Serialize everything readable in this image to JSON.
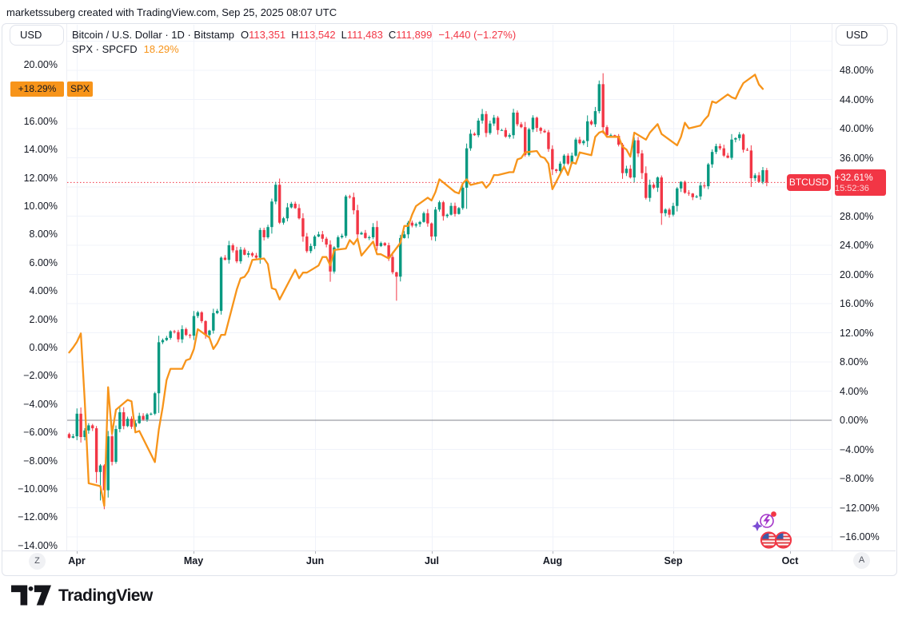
{
  "header": {
    "attribution": "marketssuberg created with TradingView.com, Sep 25, 2025 08:07 UTC"
  },
  "toolbar": {
    "currency_left": "USD",
    "currency_right": "USD",
    "zoom_out_label": "Z",
    "auto_label": "A"
  },
  "legend": {
    "row1": {
      "title": "Bitcoin / U.S. Dollar · 1D · Bitstamp",
      "ohlc": [
        {
          "k": "O",
          "v": "113,351"
        },
        {
          "k": "H",
          "v": "113,542"
        },
        {
          "k": "L",
          "v": "111,483"
        },
        {
          "k": "C",
          "v": "111,899"
        }
      ],
      "change": "−1,440 (−1.27%)"
    },
    "row2": {
      "title": "SPX · SPCFD",
      "value": "18.29%"
    }
  },
  "price_labels": {
    "spx_value": "+18.29%",
    "spx_name": "SPX",
    "btc_name": "BTCUSD",
    "btc_value": "+32.61%",
    "btc_countdown": "15:52:36"
  },
  "footer": {
    "brand": "TradingView"
  },
  "colors": {
    "up": "#089981",
    "down": "#F23645",
    "spx_line": "#F7941A",
    "last_price_line": "#F23645",
    "grid": "#F0F3FA",
    "zero_line": "#83868F",
    "text": "#131722",
    "border": "#E0E3EB",
    "axis_tick_mark": "#B2B5BE"
  },
  "chart_data": {
    "type": "candlestick+line",
    "title": "Bitcoin / U.S. Dollar (1D, Bitstamp) vs SPX — percent change since late March",
    "legend_entries": [
      "BTCUSD (candles, right %-scale)",
      "SPX (orange line, left %-scale)"
    ],
    "grid": true,
    "x_axis": {
      "unit": "days, daily bars starting Mar 30",
      "months": [
        {
          "label": "Apr",
          "day": 2
        },
        {
          "label": "May",
          "day": 32
        },
        {
          "label": "Jun",
          "day": 63
        },
        {
          "label": "Jul",
          "day": 93
        },
        {
          "label": "Aug",
          "day": 124
        },
        {
          "label": "Sep",
          "day": 155
        },
        {
          "label": "Oct",
          "day": 185
        }
      ]
    },
    "left_axis": {
      "series": "SPX",
      "unit": "%",
      "ticks": [
        {
          "v": 20,
          "label": "20.00%"
        },
        {
          "v": 16,
          "label": "16.00%"
        },
        {
          "v": 14,
          "label": "14.00%"
        },
        {
          "v": 12,
          "label": "12.00%"
        },
        {
          "v": 10,
          "label": "10.00%"
        },
        {
          "v": 8,
          "label": "8.00%"
        },
        {
          "v": 6,
          "label": "6.00%"
        },
        {
          "v": 4,
          "label": "4.00%"
        },
        {
          "v": 2,
          "label": "2.00%"
        },
        {
          "v": 0,
          "label": "0.00%"
        },
        {
          "v": -2,
          "label": "−2.00%"
        },
        {
          "v": -4,
          "label": "−4.00%"
        },
        {
          "v": -6,
          "label": "−6.00%"
        },
        {
          "v": -8,
          "label": "−8.00%"
        },
        {
          "v": -10,
          "label": "−10.00%"
        },
        {
          "v": -12,
          "label": "−12.00%"
        },
        {
          "v": -14,
          "label": "−14.00%"
        }
      ]
    },
    "right_axis": {
      "series": "BTCUSD",
      "unit": "%",
      "ticks": [
        {
          "v": 48,
          "label": "48.00%"
        },
        {
          "v": 44,
          "label": "44.00%"
        },
        {
          "v": 40,
          "label": "40.00%"
        },
        {
          "v": 36,
          "label": "36.00%"
        },
        {
          "v": 28,
          "label": "28.00%"
        },
        {
          "v": 24,
          "label": "24.00%"
        },
        {
          "v": 20,
          "label": "20.00%"
        },
        {
          "v": 16,
          "label": "16.00%"
        },
        {
          "v": 12,
          "label": "12.00%"
        },
        {
          "v": 8,
          "label": "8.00%"
        },
        {
          "v": 4,
          "label": "4.00%"
        },
        {
          "v": 0,
          "label": "0.00%"
        },
        {
          "v": -4,
          "label": "−4.00%"
        },
        {
          "v": -8,
          "label": "−8.00%"
        },
        {
          "v": -12,
          "label": "−12.00%"
        },
        {
          "v": -16,
          "label": "−16.00%"
        }
      ]
    },
    "btc": {
      "name": "BTCUSD",
      "last_pct": 32.61,
      "current_bar": {
        "open": "113,351",
        "high": "113,542",
        "low": "111,483",
        "close": "111,899",
        "change": "−1,440 (−1.27%)"
      },
      "closes_pct": [
        -2.4,
        -2.2,
        0.9,
        -2.3,
        -1.4,
        -0.7,
        -1.1,
        -7.1,
        -6.2,
        -9.6,
        -2.2,
        -5.7,
        -1.2,
        1.1,
        -0.8,
        0.2,
        -0.9,
        -0.4,
        0.6,
        0.1,
        0.8,
        0.9,
        3.7,
        10.7,
        11.0,
        11.3,
        12.2,
        12.1,
        11.1,
        12.5,
        11.7,
        11.6,
        14.3,
        14.8,
        13.6,
        11.7,
        12.3,
        14.7,
        15.0,
        22.3,
        22.0,
        24.0,
        23.3,
        21.8,
        23.4,
        22.7,
        22.9,
        22.6,
        22.3,
        26.1,
        25.1,
        26.5,
        30.0,
        32.3,
        27.1,
        27.7,
        29.2,
        29.7,
        29.1,
        27.7,
        25.2,
        23.2,
        23.9,
        25.2,
        25.5,
        24.9,
        24.1,
        20.4,
        23.7,
        25.1,
        25.3,
        30.7,
        30.6,
        28.8,
        25.5,
        25.7,
        25.0,
        25.1,
        26.5,
        23.9,
        24.3,
        24.0,
        22.4,
        20.3,
        19.7,
        25.0,
        25.5,
        27.1,
        26.7,
        26.9,
        27.2,
        28.4,
        27.0,
        25.2,
        28.9,
        29.9,
        28.0,
        28.2,
        29.4,
        28.3,
        29.1,
        31.9,
        37.3,
        39.3,
        39.1,
        41.1,
        42.0,
        39.4,
        40.7,
        41.5,
        39.8,
        39.8,
        38.9,
        39.1,
        42.2,
        40.6,
        40.2,
        36.4,
        39.9,
        41.5,
        40.1,
        39.7,
        39.5,
        37.2,
        34.4,
        34.2,
        35.2,
        36.3,
        35.2,
        36.3,
        38.5,
        38.0,
        38.3,
        41.0,
        40.6,
        42.4,
        46.1,
        40.2,
        39.1,
        39.1,
        39.0,
        37.8,
        33.9,
        34.5,
        33.3,
        38.4,
        36.6,
        33.9,
        30.5,
        32.3,
        31.9,
        33.3,
        28.4,
        28.9,
        28.2,
        29.4,
        31.8,
        32.7,
        31.2,
        31.1,
        30.6,
        30.7,
        32.2,
        32.1,
        35.1,
        36.8,
        37.6,
        37.3,
        36.3,
        36.0,
        38.5,
        38.7,
        39.2,
        37.1,
        37.0,
        33.2,
        33.6,
        32.7,
        34.3,
        32.6
      ],
      "wick_overrides": {
        "7": {
          "lo": -8.6
        },
        "8": {
          "lo": -11.0
        },
        "9": {
          "lo": -12.2
        },
        "10": {
          "lo": -10.6
        },
        "23": {
          "lo": 1.0
        },
        "53": {
          "hi": 32.7
        },
        "67": {
          "lo": 19.0
        },
        "84": {
          "lo": 16.4
        },
        "102": {
          "lo": 29.0
        },
        "106": {
          "hi": 42.7
        },
        "136": {
          "hi": 46.6
        },
        "137": {
          "hi": 47.6
        },
        "152": {
          "lo": 26.8
        },
        "175": {
          "lo": 32.0
        },
        "179": {
          "hi": 34.6,
          "lo": 32.1
        }
      }
    },
    "spx": {
      "name": "SPX",
      "last_pct": 18.29,
      "closes_pct": [
        -0.35,
        0.0,
        0.4,
        1.0,
        -3.8,
        -9.6,
        null,
        null,
        -9.8,
        -11.2,
        -2.8,
        -6.1,
        -4.4,
        null,
        null,
        -3.7,
        -3.8,
        -6.0,
        -5.9,
        null,
        null,
        null,
        -8.1,
        -5.8,
        -4.2,
        -2.3,
        -1.5,
        null,
        null,
        -1.5,
        -0.9,
        -0.8,
        -0.1,
        1.3,
        null,
        null,
        0.7,
        -0.1,
        0.3,
        0.9,
        0.9,
        null,
        null,
        4.1,
        4.9,
        5.0,
        5.4,
        6.2,
        null,
        null,
        6.3,
        5.9,
        4.2,
        4.1,
        3.4,
        null,
        null,
        null,
        5.5,
        4.9,
        5.3,
        5.3,
        null,
        null,
        5.8,
        6.4,
        6.4,
        5.8,
        6.9,
        null,
        null,
        7.0,
        7.6,
        7.3,
        7.7,
        6.5,
        null,
        null,
        7.5,
        6.6,
        6.6,
        null,
        6.3,
        null,
        null,
        7.4,
        8.6,
        8.6,
        9.4,
        10.0,
        null,
        null,
        10.6,
        10.4,
        11.0,
        11.9,
        null,
        null,
        null,
        11.0,
        10.9,
        11.6,
        11.9,
        11.5,
        null,
        null,
        11.7,
        11.3,
        11.6,
        12.2,
        12.2,
        null,
        null,
        12.4,
        12.4,
        13.3,
        13.4,
        13.8,
        null,
        null,
        13.9,
        13.5,
        13.4,
        13.0,
        11.2,
        null,
        null,
        12.8,
        12.2,
        13.1,
        13.0,
        13.8,
        null,
        null,
        13.6,
        14.9,
        15.2,
        15.3,
        14.9,
        null,
        null,
        14.9,
        14.2,
        14.0,
        13.5,
        15.2,
        null,
        null,
        14.7,
        15.2,
        15.5,
        15.8,
        15.1,
        null,
        null,
        null,
        14.3,
        14.9,
        15.9,
        15.5,
        null,
        null,
        15.7,
        16.1,
        16.4,
        17.4,
        17.3,
        null,
        null,
        17.9,
        17.7,
        17.6,
        18.2,
        18.7,
        null,
        null,
        19.3,
        18.6,
        18.29,
        null
      ]
    },
    "event_markers": [
      "ai-sparkle-event-icon",
      "us-flag-event-icon",
      "us-flag-event-icon"
    ]
  }
}
